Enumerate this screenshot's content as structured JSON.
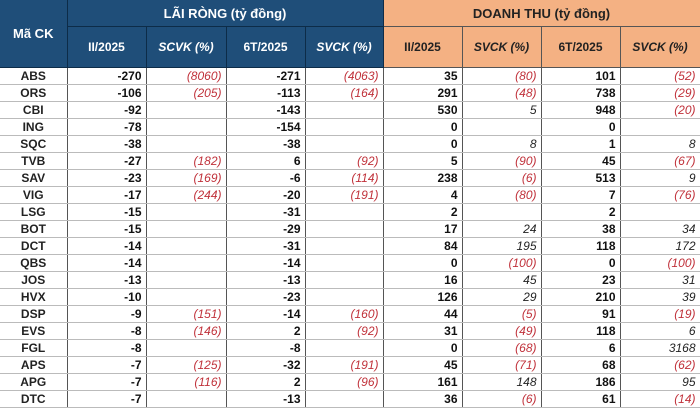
{
  "header": {
    "code": "Mã CK",
    "net_profit": "LÃI RÒNG (tỷ đồng)",
    "revenue": "DOANH THU (tỷ đồng)",
    "net_cols": [
      "II/2025",
      "SCVK (%)",
      "6T/2025",
      "SVCK (%)"
    ],
    "rev_cols": [
      "II/2025",
      "SVCK (%)",
      "6T/2025",
      "SVCK (%)"
    ]
  },
  "colors": {
    "net_header": "#1f4e79",
    "revenue_header": "#f4b183",
    "negative": "#c0313a"
  },
  "rows": [
    [
      "ABS",
      "-270",
      "(8060)",
      "-271",
      "(4063)",
      "35",
      "(80)",
      "101",
      "(52)"
    ],
    [
      "ORS",
      "-106",
      "(205)",
      "-113",
      "(164)",
      "291",
      "(48)",
      "738",
      "(29)"
    ],
    [
      "CBI",
      "-92",
      "",
      "-143",
      "",
      "530",
      "5",
      "948",
      "(20)"
    ],
    [
      "ING",
      "-78",
      "",
      "-154",
      "",
      "0",
      "",
      "0",
      ""
    ],
    [
      "SQC",
      "-38",
      "",
      "-38",
      "",
      "0",
      "8",
      "1",
      "8"
    ],
    [
      "TVB",
      "-27",
      "(182)",
      "6",
      "(92)",
      "5",
      "(90)",
      "45",
      "(67)"
    ],
    [
      "SAV",
      "-23",
      "(169)",
      "-6",
      "(114)",
      "238",
      "(6)",
      "513",
      "9"
    ],
    [
      "VIG",
      "-17",
      "(244)",
      "-20",
      "(191)",
      "4",
      "(80)",
      "7",
      "(76)"
    ],
    [
      "LSG",
      "-15",
      "",
      "-31",
      "",
      "2",
      "",
      "2",
      ""
    ],
    [
      "BOT",
      "-15",
      "",
      "-29",
      "",
      "17",
      "24",
      "38",
      "34"
    ],
    [
      "DCT",
      "-14",
      "",
      "-31",
      "",
      "84",
      "195",
      "118",
      "172"
    ],
    [
      "QBS",
      "-14",
      "",
      "-14",
      "",
      "0",
      "(100)",
      "0",
      "(100)"
    ],
    [
      "JOS",
      "-13",
      "",
      "-13",
      "",
      "16",
      "45",
      "23",
      "31"
    ],
    [
      "HVX",
      "-10",
      "",
      "-23",
      "",
      "126",
      "29",
      "210",
      "39"
    ],
    [
      "DSP",
      "-9",
      "(151)",
      "-14",
      "(160)",
      "44",
      "(5)",
      "91",
      "(19)"
    ],
    [
      "EVS",
      "-8",
      "(146)",
      "2",
      "(92)",
      "31",
      "(49)",
      "118",
      "6"
    ],
    [
      "FGL",
      "-8",
      "",
      "-8",
      "",
      "0",
      "(68)",
      "6",
      "3168"
    ],
    [
      "APS",
      "-7",
      "(125)",
      "-32",
      "(191)",
      "45",
      "(71)",
      "68",
      "(62)"
    ],
    [
      "APG",
      "-7",
      "(116)",
      "2",
      "(96)",
      "161",
      "148",
      "186",
      "95"
    ],
    [
      "DTC",
      "-7",
      "",
      "-13",
      "",
      "36",
      "(6)",
      "61",
      "(14)"
    ]
  ]
}
